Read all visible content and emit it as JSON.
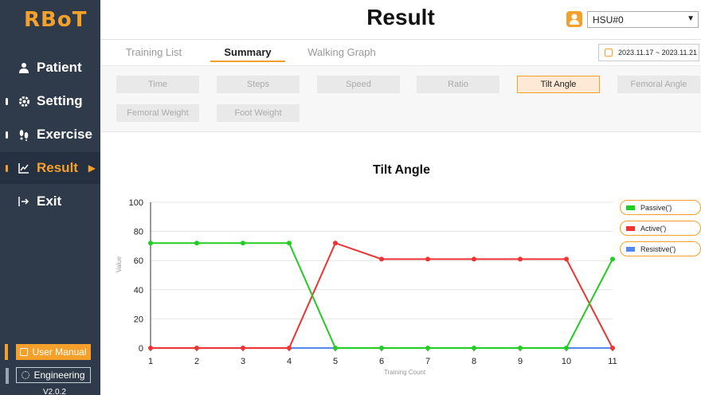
{
  "app": {
    "logo": "RBoT",
    "version": "V2.0.2"
  },
  "sidebar": {
    "items": [
      {
        "label": "Patient",
        "icon": "person-icon"
      },
      {
        "label": "Setting",
        "icon": "gear-icon"
      },
      {
        "label": "Exercise",
        "icon": "footprints-icon"
      },
      {
        "label": "Result",
        "icon": "chart-icon",
        "active": true
      },
      {
        "label": "Exit",
        "icon": "exit-icon"
      }
    ],
    "manual_label": "User Manual",
    "engineering_label": "Engineering"
  },
  "header": {
    "title": "Result",
    "user_selected": "HSU#0"
  },
  "tabs": [
    {
      "label": "Training List"
    },
    {
      "label": "Summary",
      "active": true
    },
    {
      "label": "Walking Graph"
    }
  ],
  "date_range": "2023.11.17 ~ 2023.11.21",
  "filters": [
    {
      "label": "Time"
    },
    {
      "label": "Steps"
    },
    {
      "label": "Speed"
    },
    {
      "label": "Ratio"
    },
    {
      "label": "Tilt Angle",
      "active": true
    },
    {
      "label": "Femoral Angle"
    },
    {
      "label": "Femoral Weight"
    },
    {
      "label": "Foot Weight"
    }
  ],
  "colors": {
    "accent": "#f5a02a",
    "sidebar": "#2f3b4a",
    "passive": "#22cc22",
    "active": "#ee3333",
    "resistive": "#5588ee"
  },
  "chart_data": {
    "type": "line",
    "title": "Tilt Angle",
    "xlabel": "Training Count",
    "ylabel": "Value",
    "x": [
      1,
      2,
      3,
      4,
      5,
      6,
      7,
      8,
      9,
      10,
      11
    ],
    "ylim": [
      0,
      100
    ],
    "yticks": [
      0,
      20,
      40,
      60,
      80,
      100
    ],
    "grid": true,
    "legend_position": "right",
    "series": [
      {
        "name": "Passive(')",
        "color": "#22cc22",
        "values": [
          72,
          72,
          72,
          72,
          0,
          0,
          0,
          0,
          0,
          0,
          61
        ]
      },
      {
        "name": "Active(')",
        "color": "#ee3333",
        "values": [
          0,
          0,
          0,
          0,
          72,
          61,
          61,
          61,
          61,
          61,
          0
        ]
      },
      {
        "name": "Resistive(')",
        "color": "#5588ee",
        "values": [
          0,
          0,
          0,
          0,
          0,
          0,
          0,
          0,
          0,
          0,
          0
        ]
      }
    ]
  }
}
